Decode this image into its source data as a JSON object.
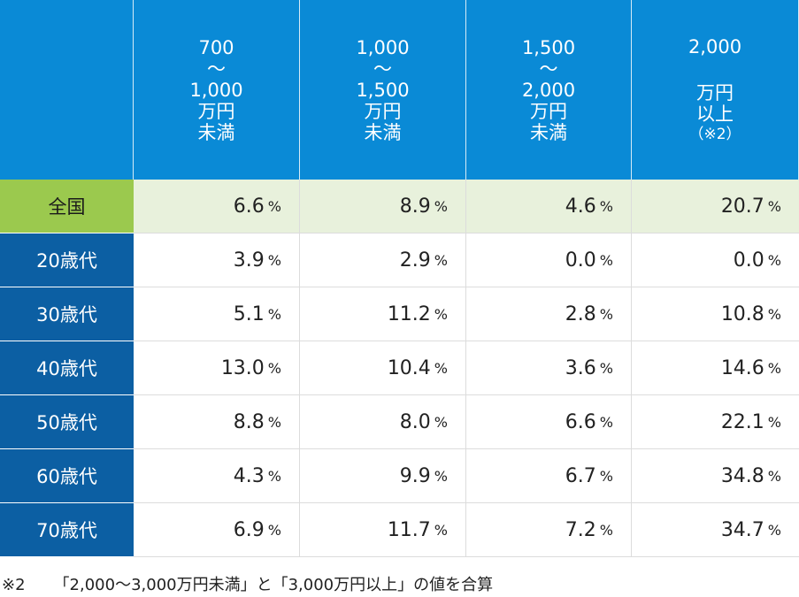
{
  "chart_data": {
    "type": "table",
    "columns": [
      {
        "range_from": "700",
        "range_sep": "〜",
        "range_to": "1,000",
        "unit": "万円",
        "suffix": "未満",
        "note": ""
      },
      {
        "range_from": "1,000",
        "range_sep": "〜",
        "range_to": "1,500",
        "unit": "万円",
        "suffix": "未満",
        "note": ""
      },
      {
        "range_from": "1,500",
        "range_sep": "〜",
        "range_to": "2,000",
        "unit": "万円",
        "suffix": "未満",
        "note": ""
      },
      {
        "range_from": "2,000",
        "range_sep": "",
        "range_to": "",
        "unit": "万円",
        "suffix": "以上",
        "note": "（※2）"
      }
    ],
    "value_unit": "%",
    "rows": [
      {
        "label": "全国",
        "values": [
          "6.6",
          "8.9",
          "4.6",
          "20.7"
        ]
      },
      {
        "label": "20歳代",
        "values": [
          "3.9",
          "2.9",
          "0.0",
          "0.0"
        ]
      },
      {
        "label": "30歳代",
        "values": [
          "5.1",
          "11.2",
          "2.8",
          "10.8"
        ]
      },
      {
        "label": "40歳代",
        "values": [
          "13.0",
          "10.4",
          "3.6",
          "14.6"
        ]
      },
      {
        "label": "50歳代",
        "values": [
          "8.8",
          "8.0",
          "6.6",
          "22.1"
        ]
      },
      {
        "label": "60歳代",
        "values": [
          "4.3",
          "9.9",
          "6.7",
          "34.8"
        ]
      },
      {
        "label": "70歳代",
        "values": [
          "6.9",
          "11.7",
          "7.2",
          "34.7"
        ]
      }
    ]
  },
  "footnote": {
    "mark": "※2",
    "text": "「2,000〜3,000万円未満」と「3,000万円以上」の値を合算"
  },
  "colors": {
    "header_bg": "#0a8ad6",
    "row_label_bg": "#0c5fa3",
    "national_label_bg": "#9bc94e",
    "national_row_bg": "#e8f1dc"
  }
}
